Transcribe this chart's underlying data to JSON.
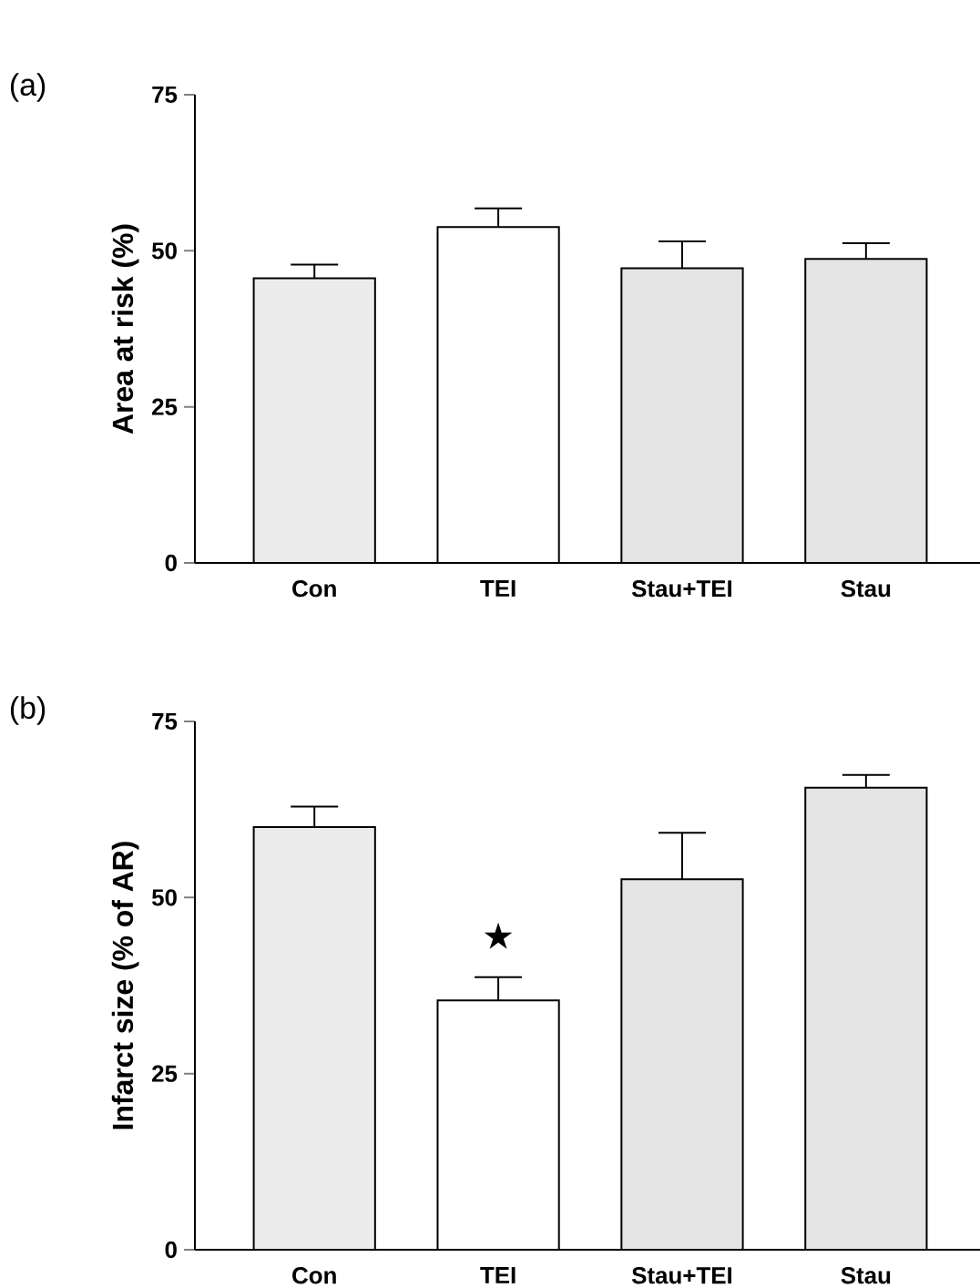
{
  "chart_data": [
    {
      "type": "bar",
      "title": "(a)",
      "ylabel": "Area at risk (%)",
      "categories": [
        "Con",
        "TEI",
        "Stau+TEI",
        "Stau"
      ],
      "values": [
        45.6,
        53.8,
        47.2,
        48.7
      ],
      "errors": [
        2.2,
        3.0,
        4.3,
        2.5
      ],
      "colors": [
        "#ececec",
        "#ffffff",
        "#e4e4e4",
        "#e4e4e4"
      ],
      "ylim": [
        0,
        75
      ],
      "yticks": [
        0,
        25,
        50,
        75
      ]
    },
    {
      "type": "bar",
      "title": "(b)",
      "ylabel": "Infarct size (% of AR)",
      "categories": [
        "Con",
        "TEI",
        "Stau+TEI",
        "Stau"
      ],
      "values": [
        60.0,
        35.4,
        52.6,
        65.6
      ],
      "errors": [
        2.9,
        3.3,
        6.6,
        1.8
      ],
      "colors": [
        "#ececec",
        "#ffffff",
        "#e4e4e4",
        "#e4e4e4"
      ],
      "ylim": [
        0,
        75
      ],
      "yticks": [
        0,
        25,
        50,
        75
      ],
      "annotations": [
        "★"
      ]
    }
  ]
}
